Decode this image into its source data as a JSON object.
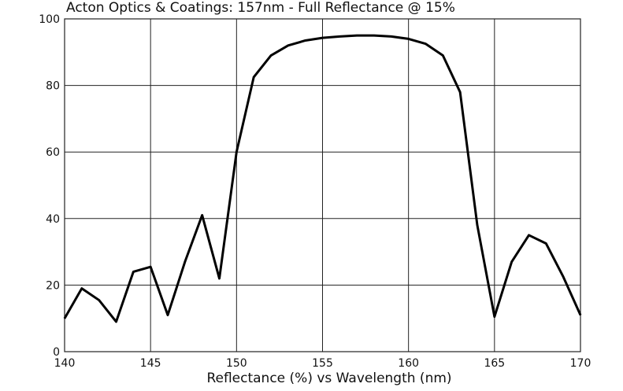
{
  "chart_data": {
    "type": "line",
    "title": "Acton Optics & Coatings:  157nm - Full Reflectance @ 15%",
    "xlabel": "Reflectance (%)  vs  Wavelength (nm)",
    "ylabel": "",
    "xlim": [
      140,
      170
    ],
    "ylim": [
      0,
      100
    ],
    "xticks": [
      140,
      145,
      150,
      155,
      160,
      165,
      170
    ],
    "yticks": [
      0,
      20,
      40,
      60,
      80,
      100
    ],
    "grid": true,
    "series": [
      {
        "name": "Reflectance",
        "color": "#000000",
        "x": [
          140,
          141,
          142,
          143,
          144,
          145,
          146,
          147,
          148,
          149,
          150,
          151,
          152,
          153,
          154,
          155,
          156,
          157,
          158,
          159,
          160,
          161,
          162,
          163,
          164,
          165,
          166,
          167,
          168,
          169,
          170
        ],
        "y": [
          10,
          19,
          15.5,
          9,
          24,
          25.5,
          11,
          27,
          41,
          22,
          60,
          82.5,
          89,
          92,
          93.5,
          94.3,
          94.7,
          95,
          95,
          94.7,
          94,
          92.5,
          89,
          78,
          38,
          10.5,
          27,
          35,
          32.5,
          22.5,
          11
        ]
      }
    ]
  }
}
